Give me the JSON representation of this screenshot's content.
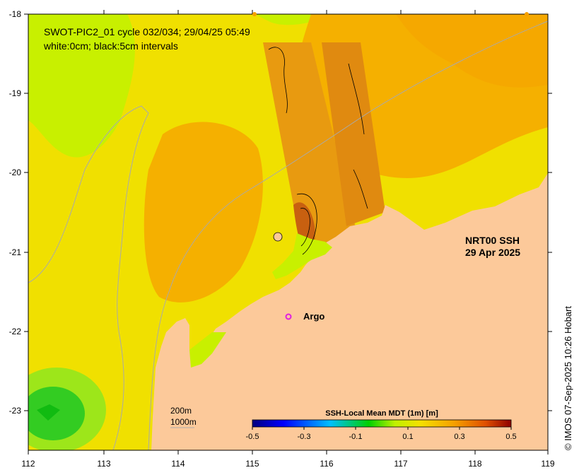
{
  "title_line1": "SWOT-PIC2_01 cycle 032/034; 29/04/25 05:49",
  "title_line2": "white:0cm; black:5cm intervals",
  "product_line1": "NRT00 SSH",
  "product_line2": "29 Apr 2025",
  "argo_label": "Argo",
  "credit": "© IMOS 07-Sep-2025 10:26 Hobart",
  "contour_200": "200m",
  "contour_1000": "1000m",
  "colorbar": {
    "title": "SSH-Local Mean MDT (1m) [m]",
    "ticks": [
      "-0.5",
      "-0.3",
      "-0.1",
      "0.1",
      "0.3",
      "0.5"
    ],
    "range": [
      -0.5,
      0.5
    ]
  },
  "axes": {
    "x_ticks": [
      "112",
      "113",
      "114",
      "115",
      "116",
      "117",
      "118",
      "119"
    ],
    "y_ticks": [
      "-18",
      "-19",
      "-20",
      "-21",
      "-22",
      "-23"
    ]
  },
  "colors": {
    "land": "#fcc99a",
    "ssh_green": "#c8f000",
    "ssh_yellow": "#f0e000",
    "ssh_orange": "#f5b000",
    "ssh_dark_orange": "#e8960a",
    "argo": "#e020e0"
  }
}
